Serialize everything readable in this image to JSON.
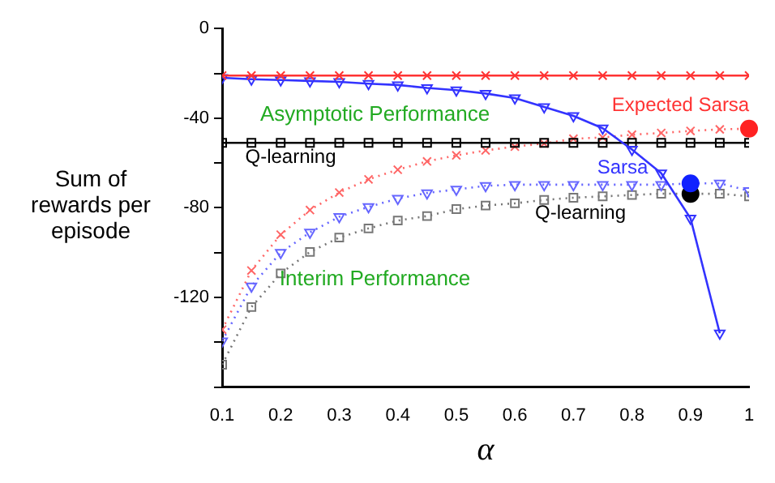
{
  "chart_data": {
    "type": "line",
    "xlabel": "α",
    "ylabel": "Sum of rewards per episode",
    "x": [
      0.1,
      0.15,
      0.2,
      0.25,
      0.3,
      0.35,
      0.4,
      0.45,
      0.5,
      0.55,
      0.6,
      0.65,
      0.7,
      0.75,
      0.8,
      0.85,
      0.9,
      0.95,
      1.0
    ],
    "series": [
      {
        "color": "#ff3333",
        "marker": "cross",
        "line_style": "solid",
        "values": [
          -21,
          -21,
          -21,
          -21,
          -21,
          -21,
          -21,
          -21,
          -21,
          -21,
          -21,
          -21,
          -21,
          -21,
          -21,
          -21,
          -21,
          -21,
          -21
        ]
      },
      {
        "color": "#3333ff",
        "marker": "triangle",
        "line_style": "solid",
        "values": [
          -22,
          -22.6,
          -23,
          -23.4,
          -23.8,
          -24.6,
          -25.2,
          -26.5,
          -27.5,
          -29,
          -31,
          -35,
          -39,
          -44.5,
          -54,
          -64.6,
          -84.7,
          -136,
          null
        ]
      },
      {
        "color": "#000000",
        "marker": "square",
        "line_style": "solid",
        "values": [
          -51,
          -51,
          -51,
          -51,
          -51,
          -51,
          -51,
          -51,
          -51,
          -51,
          -51,
          -51,
          -51,
          -51,
          -51,
          -51,
          -51,
          -51,
          -51
        ]
      },
      {
        "color": "#ff6666",
        "marker": "cross",
        "line_style": "dotted",
        "values": [
          -134.4,
          -108,
          -92,
          -81,
          -73.2,
          -67.3,
          -63,
          -59.3,
          -56.6,
          -54.4,
          -52.7,
          -51.3,
          -49.2,
          -48.6,
          -47.4,
          -46.6,
          -45.7,
          -45,
          -44.7
        ]
      },
      {
        "color": "#6666ff",
        "marker": "triangle",
        "line_style": "dotted",
        "values": [
          -139.5,
          -115,
          -100,
          -91,
          -84,
          -79.6,
          -75.9,
          -73.4,
          -71.8,
          -70.2,
          -69.7,
          -69.7,
          -69.7,
          -69.7,
          -69.7,
          -69.7,
          -69.1,
          -69.1,
          -72.4
        ]
      },
      {
        "color": "#777777",
        "marker": "square",
        "line_style": "dotted",
        "values": [
          -150,
          -124.3,
          -109.3,
          -99.7,
          -93.3,
          -89.2,
          -85.7,
          -83.7,
          -80.6,
          -79,
          -78,
          -76.5,
          -75.5,
          -74.9,
          -74.3,
          -73.7,
          -73.8,
          -73.7,
          -74.9
        ]
      },
      {
        "type": "scatter",
        "marker": "circle",
        "color": "#ff2222",
        "values": [
          null,
          null,
          null,
          null,
          null,
          null,
          null,
          null,
          null,
          null,
          null,
          null,
          null,
          null,
          null,
          null,
          null,
          null,
          -44.7
        ]
      },
      {
        "type": "scatter",
        "marker": "circle",
        "color": "#1122ff",
        "values": [
          null,
          null,
          null,
          null,
          null,
          null,
          null,
          null,
          null,
          null,
          null,
          null,
          null,
          null,
          null,
          null,
          -69.1,
          null,
          null
        ]
      },
      {
        "type": "scatter",
        "marker": "circle",
        "color": "#000000",
        "values": [
          null,
          null,
          null,
          null,
          null,
          null,
          null,
          null,
          null,
          null,
          null,
          null,
          null,
          null,
          null,
          null,
          -73.8,
          null,
          null
        ]
      }
    ],
    "xlim": [
      0.1,
      1
    ],
    "xticks": [
      0.1,
      0.2,
      0.3,
      0.4,
      0.5,
      0.6,
      0.7,
      0.8,
      0.9,
      1
    ],
    "ylim": [
      -160,
      0
    ],
    "yticks": [
      0,
      {
        "value": -20,
        "label": null
      },
      -40,
      {
        "value": -60,
        "label": null
      },
      -80,
      {
        "value": -100,
        "label": null
      },
      -120,
      {
        "value": -140,
        "label": null
      },
      {
        "value": -160,
        "label": null
      }
    ],
    "grid": false,
    "legend": false,
    "annotations": [
      "Asymptotic Performance",
      "Interim Performance",
      "Expected Sarsa",
      "Sarsa",
      "Q-learning",
      "Q-learning"
    ]
  }
}
